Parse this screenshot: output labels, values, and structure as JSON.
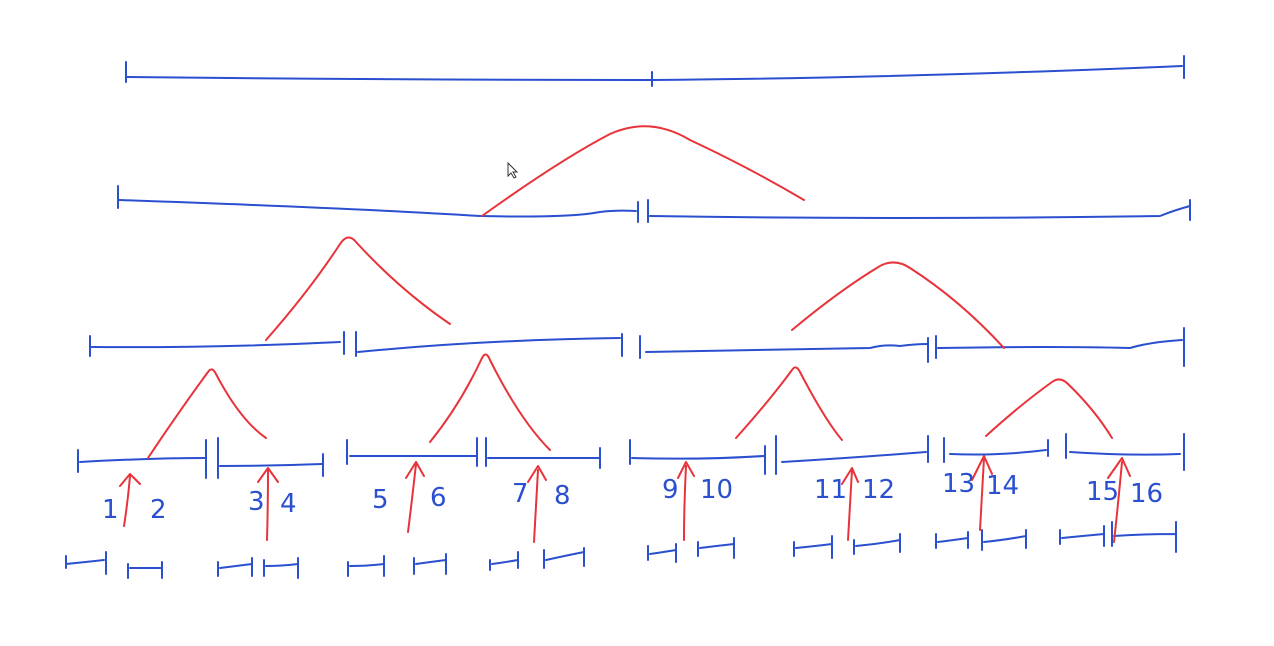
{
  "labels": [
    "1",
    "2",
    "3",
    "4",
    "5",
    "6",
    "7",
    "8",
    "9",
    "10",
    "11",
    "12",
    "13",
    "14",
    "15",
    "16"
  ],
  "colors": {
    "segment": "#2a4fcf",
    "arrow": "#e8333a",
    "background": "#ffffff"
  }
}
